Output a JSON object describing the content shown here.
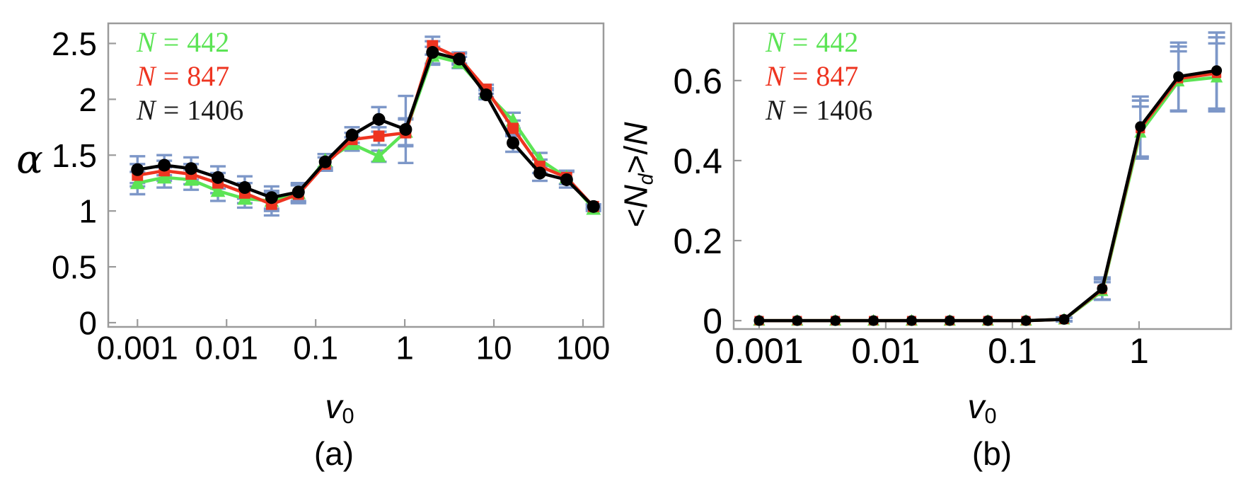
{
  "figure": {
    "background": "#ffffff",
    "legend": {
      "entries": [
        {
          "name": "N",
          "eq": "=",
          "value": "442",
          "color": "#5ce455"
        },
        {
          "name": "N",
          "eq": "=",
          "value": "847",
          "color": "#ee3420"
        },
        {
          "name": "N",
          "eq": "=",
          "value": "1406",
          "color": "#1a1a1a"
        }
      ]
    },
    "panel_a": {
      "caption": "(a)",
      "xlabel_sym": "v",
      "xlabel_sub": "0",
      "ylabel_sym": "α"
    },
    "panel_b": {
      "caption": "(b)",
      "xlabel_sym": "v",
      "xlabel_sub": "0",
      "ylabel_pre": "<",
      "ylabel_sym": "N",
      "ylabel_sub": "d",
      "ylabel_post": ">/",
      "ylabel_sym2": "N"
    }
  },
  "chart_data": [
    {
      "id": "a",
      "type": "line",
      "x_scale": "log",
      "xlabel": "v0",
      "ylabel": "alpha",
      "xlim": [
        0.00047,
        170
      ],
      "ylim": [
        -0.038,
        2.68
      ],
      "grid": false,
      "legend_position": "top-left",
      "axis_color": "#9b9b9b",
      "error_bar_color": "#7d97c8",
      "x_ticks": [
        {
          "label": "0.001",
          "value": 0.001
        },
        {
          "label": "0.01",
          "value": 0.01
        },
        {
          "label": "0.1",
          "value": 0.1
        },
        {
          "label": "1",
          "value": 1
        },
        {
          "label": "10",
          "value": 10
        },
        {
          "label": "100",
          "value": 100
        }
      ],
      "y_ticks": [
        {
          "label": "0",
          "value": 0
        },
        {
          "label": "0.5",
          "value": 0.5
        },
        {
          "label": "1",
          "value": 1
        },
        {
          "label": "1.5",
          "value": 1.5
        },
        {
          "label": "2",
          "value": 2
        },
        {
          "label": "2.5",
          "value": 2.5
        }
      ],
      "x": [
        0.001,
        0.002,
        0.004,
        0.008,
        0.016,
        0.032,
        0.064,
        0.128,
        0.256,
        0.512,
        1.024,
        2.048,
        4.096,
        8.192,
        16.384,
        32.768,
        65.536,
        131.072
      ],
      "series": [
        {
          "name": "N = 442",
          "color": "#5ce455",
          "marker": "triangle",
          "values": [
            1.25,
            1.3,
            1.28,
            1.18,
            1.11,
            1.09,
            1.16,
            1.45,
            1.6,
            1.49,
            1.71,
            2.39,
            2.33,
            2.06,
            1.81,
            1.46,
            1.3,
            1.02
          ],
          "errors": [
            0.1,
            0.09,
            0.09,
            0.09,
            0.08,
            0.09,
            0.08,
            0.06,
            0.06,
            0.05,
            0.12,
            0.08,
            0.05,
            0.04,
            0.07,
            0.06,
            0.06,
            0.02
          ]
        },
        {
          "name": "N = 847",
          "color": "#ee3420",
          "marker": "square",
          "values": [
            1.32,
            1.36,
            1.33,
            1.25,
            1.16,
            1.06,
            1.15,
            1.42,
            1.64,
            1.67,
            1.7,
            2.48,
            2.37,
            2.09,
            1.74,
            1.4,
            1.3,
            1.04
          ],
          "errors": [
            0.1,
            0.09,
            0.09,
            0.09,
            0.09,
            0.1,
            0.08,
            0.06,
            0.06,
            0.08,
            0.12,
            0.08,
            0.05,
            0.04,
            0.07,
            0.06,
            0.06,
            0.02
          ]
        },
        {
          "name": "N = 1406",
          "color": "#000000",
          "marker": "circle",
          "values": [
            1.37,
            1.41,
            1.38,
            1.3,
            1.21,
            1.12,
            1.17,
            1.44,
            1.68,
            1.82,
            1.73,
            2.42,
            2.36,
            2.04,
            1.61,
            1.34,
            1.28,
            1.04
          ],
          "errors": [
            0.12,
            0.09,
            0.1,
            0.1,
            0.1,
            0.1,
            0.08,
            0.07,
            0.07,
            0.11,
            0.3,
            0.1,
            0.05,
            0.04,
            0.08,
            0.07,
            0.07,
            0.02
          ]
        }
      ]
    },
    {
      "id": "b",
      "type": "line",
      "x_scale": "log",
      "xlabel": "v0",
      "ylabel": "<Nd>/N",
      "xlim": [
        0.00063,
        5.33
      ],
      "ylim": [
        -0.021,
        0.743
      ],
      "grid": false,
      "legend_position": "top-left",
      "axis_color": "#9b9b9b",
      "error_bar_color": "#7d97c8",
      "x_ticks": [
        {
          "label": "0.001",
          "value": 0.001
        },
        {
          "label": "0.01",
          "value": 0.01
        },
        {
          "label": "0.1",
          "value": 0.1
        },
        {
          "label": "1",
          "value": 1
        }
      ],
      "y_ticks": [
        {
          "label": "0",
          "value": 0
        },
        {
          "label": "0.2",
          "value": 0.2
        },
        {
          "label": "0.4",
          "value": 0.4
        },
        {
          "label": "0.6",
          "value": 0.6
        }
      ],
      "x": [
        0.001,
        0.002,
        0.004,
        0.008,
        0.016,
        0.032,
        0.064,
        0.128,
        0.256,
        0.512,
        1.024,
        2.048,
        4.096
      ],
      "series": [
        {
          "name": "N = 442",
          "color": "#5ce455",
          "marker": "triangle",
          "values": [
            0,
            0,
            0,
            0,
            0,
            0,
            0,
            0,
            0.003,
            0.074,
            0.47,
            0.598,
            0.608
          ],
          "errors": [
            0,
            0,
            0,
            0,
            0,
            0,
            0,
            0,
            0.004,
            0.022,
            0.065,
            0.075,
            0.085
          ]
        },
        {
          "name": "N = 847",
          "color": "#ee3420",
          "marker": "square",
          "values": [
            0,
            0,
            0,
            0,
            0,
            0,
            0,
            0,
            0.003,
            0.078,
            0.48,
            0.605,
            0.618
          ],
          "errors": [
            0,
            0,
            0,
            0,
            0,
            0,
            0,
            0,
            0.004,
            0.025,
            0.07,
            0.08,
            0.09
          ]
        },
        {
          "name": "N = 1406",
          "color": "#000000",
          "marker": "circle",
          "values": [
            0,
            0,
            0,
            0,
            0,
            0,
            0,
            0,
            0.003,
            0.08,
            0.485,
            0.61,
            0.625
          ],
          "errors": [
            0,
            0,
            0,
            0,
            0,
            0,
            0,
            0,
            0.005,
            0.028,
            0.075,
            0.085,
            0.095
          ]
        }
      ]
    }
  ]
}
